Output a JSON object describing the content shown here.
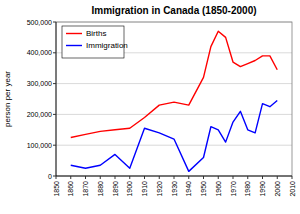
{
  "chart_data": {
    "type": "line",
    "title": "Immigration in Canada (1850-2000)",
    "y_label": "person per year",
    "x": [
      1860,
      1870,
      1880,
      1890,
      1900,
      1910,
      1920,
      1930,
      1940,
      1950,
      1955,
      1960,
      1965,
      1970,
      1975,
      1980,
      1985,
      1990,
      1995,
      2000
    ],
    "series": [
      {
        "name": "Births",
        "color": "#ff0000",
        "values": [
          125000,
          135000,
          145000,
          150000,
          155000,
          190000,
          230000,
          240000,
          230000,
          320000,
          420000,
          470000,
          450000,
          370000,
          355000,
          365000,
          375000,
          390000,
          390000,
          345000
        ]
      },
      {
        "name": "Immigration",
        "color": "#0000ff",
        "values": [
          35000,
          25000,
          35000,
          70000,
          25000,
          155000,
          140000,
          120000,
          15000,
          60000,
          160000,
          150000,
          110000,
          175000,
          210000,
          150000,
          140000,
          235000,
          225000,
          245000
        ]
      }
    ],
    "xlim": [
      1850,
      2010
    ],
    "xticks": [
      1850,
      1860,
      1870,
      1880,
      1890,
      1900,
      1910,
      1920,
      1930,
      1940,
      1950,
      1960,
      1970,
      1980,
      1990,
      2000,
      2010
    ],
    "ylim": [
      0,
      500000
    ],
    "yticks": [
      0,
      {
        "value": 100000,
        "label": "100,000"
      },
      {
        "value": 200000,
        "label": "200,000"
      },
      {
        "value": 300000,
        "label": "300,000"
      },
      {
        "value": 400000,
        "label": "400,000"
      },
      {
        "value": 500000,
        "label": "500,000"
      }
    ],
    "grid": true,
    "legend": "top-left"
  }
}
